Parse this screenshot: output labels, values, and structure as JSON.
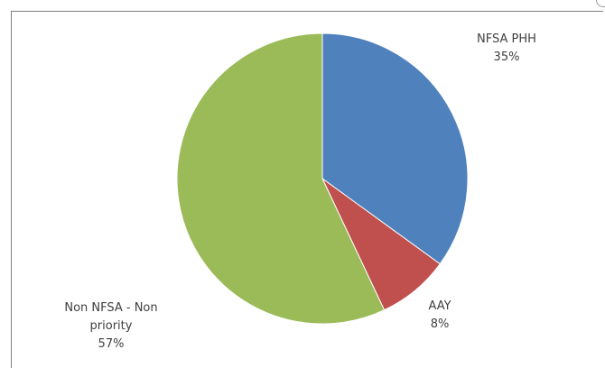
{
  "chart_data": {
    "type": "pie",
    "title": "",
    "slices": [
      {
        "label": "NFSA PHH",
        "value": 35,
        "value_label": "35%",
        "color": "#4f81bd"
      },
      {
        "label": "AAY",
        "value": 8,
        "value_label": "8%",
        "color": "#c0504d"
      },
      {
        "label": "Non NFSA - Non priority",
        "label_lines": [
          "Non NFSA - Non",
          "priority"
        ],
        "value": 57,
        "value_label": "57%",
        "color": "#9bbb59"
      }
    ],
    "start_angle": "top",
    "direction": "clockwise",
    "legend": "none"
  }
}
